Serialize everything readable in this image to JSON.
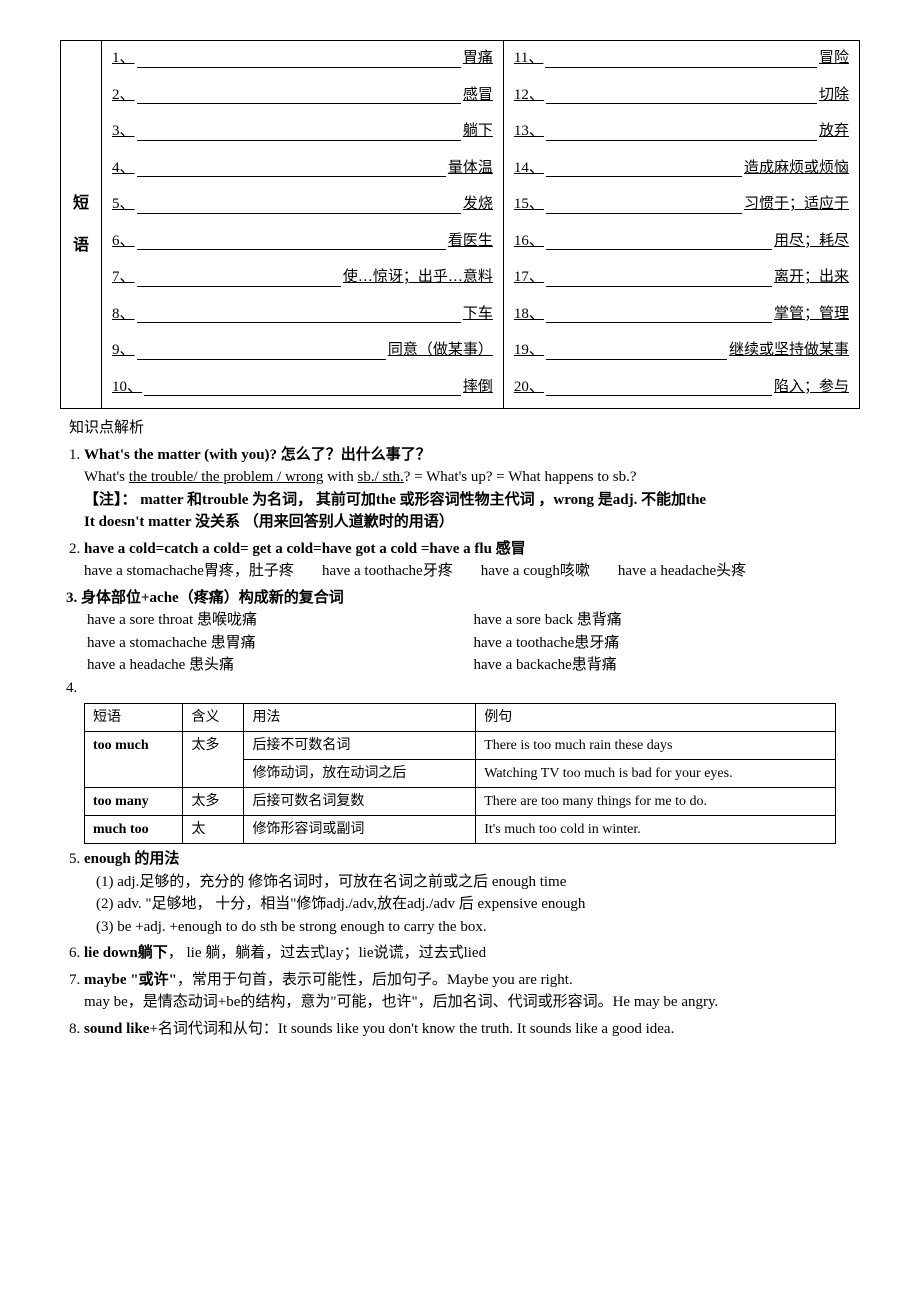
{
  "fill": {
    "label_line1": "短",
    "label_line2": "语",
    "left": [
      {
        "n": "1、",
        "a": "胃痛"
      },
      {
        "n": "2、",
        "a": "感冒"
      },
      {
        "n": "3、",
        "a": "躺下"
      },
      {
        "n": "4、",
        "a": "量体温"
      },
      {
        "n": "5、",
        "a": "发烧"
      },
      {
        "n": "6、",
        "a": "看医生"
      },
      {
        "n": "7、",
        "a": "使…惊讶；出乎…意料"
      },
      {
        "n": "8、",
        "a": "下车"
      },
      {
        "n": "9、",
        "a": "同意（做某事）"
      },
      {
        "n": "10、",
        "a": "摔倒"
      }
    ],
    "right": [
      {
        "n": "11、",
        "a": "冒险"
      },
      {
        "n": "12、",
        "a": "切除"
      },
      {
        "n": "13、",
        "a": "放弃"
      },
      {
        "n": "14、",
        "a": "造成麻烦或烦恼"
      },
      {
        "n": "15、",
        "a": "习惯于；适应于"
      },
      {
        "n": "16、",
        "a": "用尽；耗尽"
      },
      {
        "n": "17、",
        "a": "离开；出来"
      },
      {
        "n": "18、",
        "a": "掌管；管理"
      },
      {
        "n": "19、",
        "a": "继续或坚持做某事"
      },
      {
        "n": "20、",
        "a": "陷入；参与"
      }
    ]
  },
  "analysis_title": "知识点解析",
  "p1": {
    "head": "What's the matter (with you)?  怎么了？出什么事了？",
    "l1a": "What's ",
    "l1u": "the trouble/ the problem / wrong",
    "l1b": " with ",
    "l1u2": "sb./ sth.",
    "l1c": "? = What's up? = What happens to sb.?",
    "note": "【注】： matter 和trouble 为名词， 其前可加the 或形容词性物主代词 ，wrong 是adj. 不能加the",
    "l2": "It doesn't matter  没关系 （用来回答别人道歉时的用语）"
  },
  "p2": {
    "head": "have a cold=catch a cold= get a cold=have got a cold =have a flu  感冒",
    "items": [
      "have a stomachache胃疼，肚子疼",
      "have a toothache牙疼",
      "have a cough咳嗽",
      "have a headache头疼"
    ]
  },
  "p3": {
    "head": "3. 身体部位+ache（疼痛）构成新的复合词",
    "rows": [
      [
        "have a sore throat  患喉咙痛",
        "have a sore back   患背痛"
      ],
      [
        "have a stomachache  患胃痛",
        "have a toothache患牙痛"
      ],
      [
        "have a headache  患头痛",
        "have a backache患背痛"
      ]
    ]
  },
  "p4": {
    "label": "4.",
    "headers": [
      "短语",
      "含义",
      "用法",
      "例句"
    ],
    "rows": [
      {
        "phrase": "too much",
        "meaning": "太多",
        "usage": [
          "后接不可数名词",
          "修饰动词，放在动词之后"
        ],
        "example": [
          "There is too much rain these days",
          "Watching TV too much is bad for your eyes."
        ]
      },
      {
        "phrase": "too many",
        "meaning": "太多",
        "usage": [
          "后接可数名词复数"
        ],
        "example": [
          "There are too many things for me to do."
        ]
      },
      {
        "phrase": "much too",
        "meaning": "太",
        "usage": [
          "修饰形容词或副词"
        ],
        "example": [
          "It's much too cold    in winter."
        ]
      }
    ]
  },
  "p5": {
    "head": "enough 的用法",
    "l1": "(1) adj.足够的，充分的  修饰名词时，可放在名词之前或之后  enough time",
    "l2": "(2) adv. \"足够地， 十分，相当\"修饰adj./adv,放在adj./adv 后  expensive enough",
    "l3": "(3) be +adj. +enough to do sth    be strong enough to carry the box."
  },
  "p6": {
    "head_a": "lie down躺下",
    "head_b": "， lie 躺，躺着，过去式lay；lie说谎，过去式lied"
  },
  "p7": {
    "head_a": "maybe \"或许\"",
    "head_b": "，常用于句首，表示可能性，后加句子。Maybe you are right.",
    "l2": " may be，是情态动词+be的结构，意为\"可能，也许\"，后加名词、代词或形容词。He may be angry."
  },
  "p8": {
    "head_a": "sound like",
    "head_b": "+名词代词和从句：It sounds like you don't know the truth.     It sounds like a good idea."
  }
}
